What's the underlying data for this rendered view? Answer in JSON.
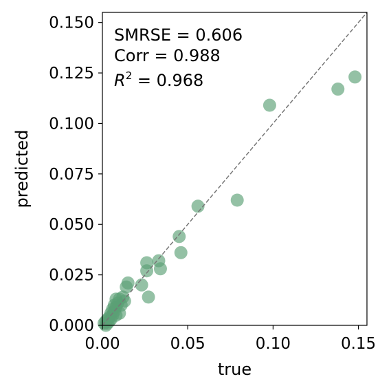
{
  "chart_data": {
    "type": "scatter",
    "title": "",
    "xlabel": "true",
    "ylabel": "predicted",
    "xlim": [
      0,
      0.155
    ],
    "ylim": [
      0,
      0.155
    ],
    "xticks": [
      0.0,
      0.05,
      0.1,
      0.15
    ],
    "xtick_labels": [
      "0.00",
      "0.05",
      "0.10",
      "0.15"
    ],
    "yticks": [
      0.0,
      0.025,
      0.05,
      0.075,
      0.1,
      0.125,
      0.15
    ],
    "ytick_labels": [
      "0.000",
      "0.025",
      "0.050",
      "0.075",
      "0.100",
      "0.125",
      "0.150"
    ],
    "grid": false,
    "reference_line": {
      "style": "dashed",
      "color": "#777777",
      "from": [
        0,
        0
      ],
      "to": [
        0.155,
        0.155
      ]
    },
    "marker_color": "#5a9f74",
    "annotations": {
      "smrse": "SMRSE = 0.606",
      "corr": "Corr = 0.988",
      "r2_symbol": "R",
      "r2_exp": "2",
      "r2_value": " = 0.968"
    },
    "points": [
      {
        "x": 0.148,
        "y": 0.123
      },
      {
        "x": 0.138,
        "y": 0.117
      },
      {
        "x": 0.098,
        "y": 0.109
      },
      {
        "x": 0.079,
        "y": 0.062
      },
      {
        "x": 0.056,
        "y": 0.059
      },
      {
        "x": 0.045,
        "y": 0.044
      },
      {
        "x": 0.046,
        "y": 0.036
      },
      {
        "x": 0.033,
        "y": 0.032
      },
      {
        "x": 0.034,
        "y": 0.028
      },
      {
        "x": 0.026,
        "y": 0.031
      },
      {
        "x": 0.026,
        "y": 0.027
      },
      {
        "x": 0.023,
        "y": 0.02
      },
      {
        "x": 0.027,
        "y": 0.014
      },
      {
        "x": 0.015,
        "y": 0.021
      },
      {
        "x": 0.014,
        "y": 0.019
      },
      {
        "x": 0.012,
        "y": 0.014
      },
      {
        "x": 0.013,
        "y": 0.012
      },
      {
        "x": 0.011,
        "y": 0.01
      },
      {
        "x": 0.01,
        "y": 0.013
      },
      {
        "x": 0.008,
        "y": 0.013
      },
      {
        "x": 0.009,
        "y": 0.011
      },
      {
        "x": 0.008,
        "y": 0.009
      },
      {
        "x": 0.007,
        "y": 0.01
      },
      {
        "x": 0.006,
        "y": 0.008
      },
      {
        "x": 0.007,
        "y": 0.007
      },
      {
        "x": 0.01,
        "y": 0.006
      },
      {
        "x": 0.008,
        "y": 0.005
      },
      {
        "x": 0.006,
        "y": 0.005
      },
      {
        "x": 0.005,
        "y": 0.006
      },
      {
        "x": 0.004,
        "y": 0.004
      },
      {
        "x": 0.005,
        "y": 0.003
      },
      {
        "x": 0.003,
        "y": 0.003
      },
      {
        "x": 0.004,
        "y": 0.002
      },
      {
        "x": 0.002,
        "y": 0.002
      },
      {
        "x": 0.003,
        "y": 0.001
      },
      {
        "x": 0.001,
        "y": 0.001
      },
      {
        "x": 0.002,
        "y": 0.0
      }
    ]
  }
}
